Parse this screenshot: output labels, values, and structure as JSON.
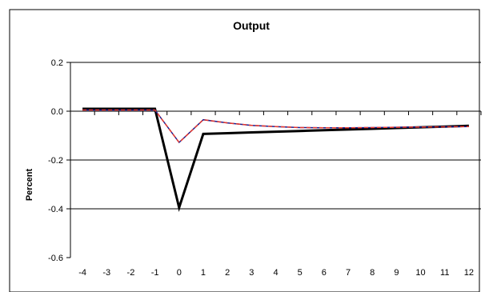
{
  "chart_data": {
    "type": "line",
    "title": "Output",
    "xlabel": "",
    "ylabel": "Percent",
    "x": [
      -4,
      -3,
      -2,
      -1,
      0,
      1,
      2,
      3,
      4,
      5,
      6,
      7,
      8,
      9,
      10,
      11,
      12
    ],
    "ylim": [
      -0.6,
      0.2
    ],
    "yticks": [
      0.2,
      0.0,
      -0.2,
      -0.4,
      -0.6
    ],
    "ytick_labels": [
      "0.2",
      "0.0",
      "-0.2",
      "-0.4",
      "-0.6"
    ],
    "xtick_labels": [
      "-4",
      "-3",
      "-2",
      "-1",
      "0",
      "1",
      "2",
      "3",
      "4",
      "5",
      "6",
      "7",
      "8",
      "9",
      "10",
      "11",
      "12"
    ],
    "grid": "horizontal",
    "legend": "none",
    "series": [
      {
        "color": "#000000",
        "style": "solid-thick",
        "values": [
          0.01,
          0.01,
          0.01,
          0.01,
          -0.395,
          -0.093,
          -0.09,
          -0.087,
          -0.084,
          -0.081,
          -0.078,
          -0.075,
          -0.072,
          -0.069,
          -0.066,
          -0.063,
          -0.06
        ]
      },
      {
        "color": "#1f1f8f",
        "style": "solid",
        "values": [
          0.005,
          0.005,
          0.005,
          0.005,
          -0.128,
          -0.035,
          -0.048,
          -0.058,
          -0.063,
          -0.067,
          -0.068,
          -0.068,
          -0.067,
          -0.066,
          -0.065,
          -0.064,
          -0.063
        ]
      },
      {
        "color": "#e8392f",
        "style": "dashed",
        "values": [
          0.005,
          0.005,
          0.005,
          0.005,
          -0.128,
          -0.035,
          -0.048,
          -0.058,
          -0.063,
          -0.067,
          -0.068,
          -0.068,
          -0.067,
          -0.066,
          -0.065,
          -0.064,
          -0.063
        ]
      }
    ]
  }
}
